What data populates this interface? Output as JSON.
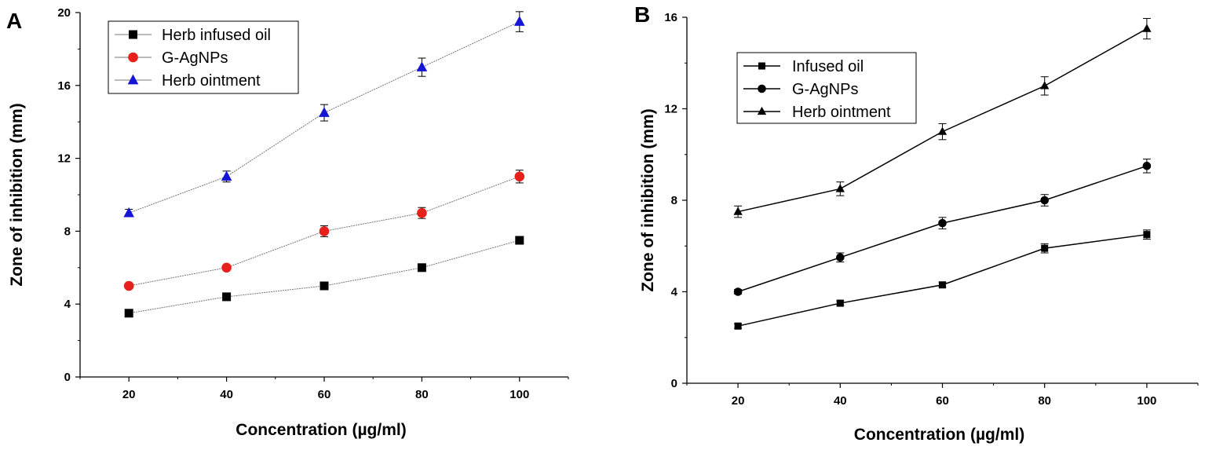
{
  "chart_data": [
    {
      "panel": "A",
      "type": "line",
      "xlabel": "Concentration (µg/ml)",
      "ylabel": "Zone of inhibition (mm)",
      "x": [
        20,
        40,
        60,
        80,
        100
      ],
      "xlim": [
        10,
        110
      ],
      "ylim": [
        0,
        20
      ],
      "xticks": [
        20,
        40,
        60,
        80,
        100
      ],
      "yticks": [
        0,
        4,
        8,
        12,
        16,
        20
      ],
      "legend_position": "top-left",
      "series": [
        {
          "name": "Herb infused oil",
          "marker": "square",
          "color": "#000000",
          "values": [
            3.5,
            4.4,
            5.0,
            6.0,
            7.5
          ],
          "errors": [
            0.1,
            0.1,
            0.1,
            0.1,
            0.2
          ]
        },
        {
          "name": "G-AgNPs",
          "marker": "circle",
          "color": "#e8201b",
          "values": [
            5.0,
            6.0,
            8.0,
            9.0,
            11.0
          ],
          "errors": [
            0.1,
            0.1,
            0.3,
            0.3,
            0.35
          ]
        },
        {
          "name": "Herb ointment",
          "marker": "triangle",
          "color": "#1515d6",
          "values": [
            9.0,
            11.0,
            14.5,
            17.0,
            19.5
          ],
          "errors": [
            0.2,
            0.3,
            0.45,
            0.5,
            0.55
          ]
        }
      ]
    },
    {
      "panel": "B",
      "type": "line",
      "xlabel": "Concentration (µg/ml)",
      "ylabel": "Zone of inhibition (mm)",
      "x": [
        20,
        40,
        60,
        80,
        100
      ],
      "xlim": [
        10,
        110
      ],
      "ylim": [
        0,
        16
      ],
      "xticks": [
        20,
        40,
        60,
        80,
        100
      ],
      "yticks": [
        0,
        4,
        8,
        12,
        16
      ],
      "legend_position": "top-left",
      "series": [
        {
          "name": "Infused oil",
          "marker": "square",
          "color": "#000000",
          "values": [
            2.5,
            3.5,
            4.3,
            5.9,
            6.5
          ],
          "errors": [
            0.1,
            0.1,
            0.1,
            0.2,
            0.2
          ]
        },
        {
          "name": "G-AgNPs",
          "marker": "circle",
          "color": "#000000",
          "values": [
            4.0,
            5.5,
            7.0,
            8.0,
            9.5
          ],
          "errors": [
            0.1,
            0.2,
            0.25,
            0.25,
            0.3
          ]
        },
        {
          "name": "Herb ointment",
          "marker": "triangle",
          "color": "#000000",
          "values": [
            7.5,
            8.5,
            11.0,
            13.0,
            15.5
          ],
          "errors": [
            0.25,
            0.3,
            0.35,
            0.4,
            0.45
          ]
        }
      ]
    }
  ]
}
